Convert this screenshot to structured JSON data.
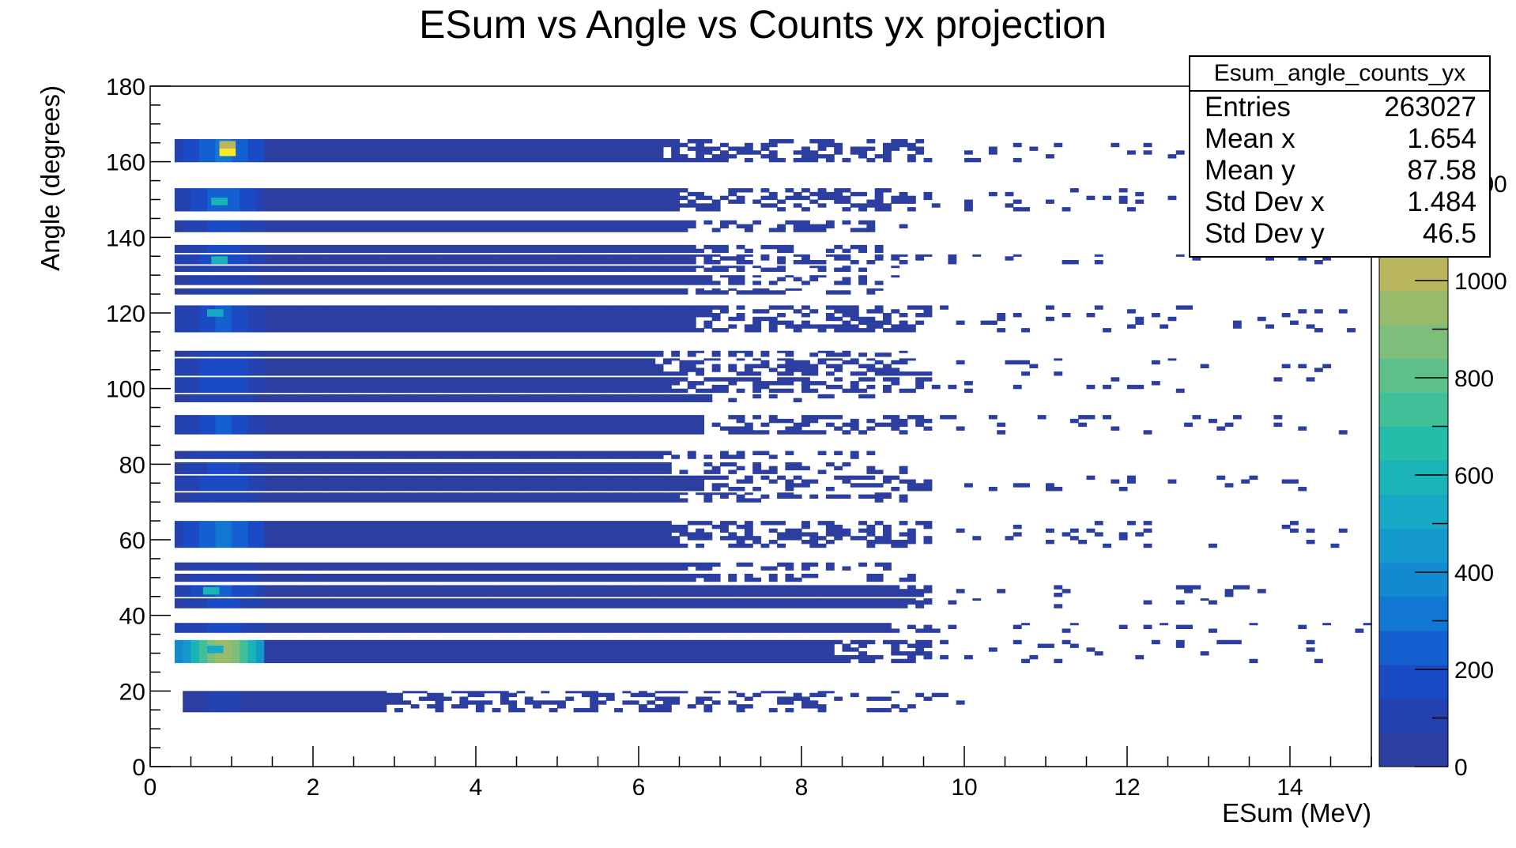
{
  "chart_data": {
    "type": "heatmap",
    "title": "ESum vs Angle vs Counts yx projection",
    "xlabel": "ESum (MeV)",
    "ylabel": "Angle (degrees)",
    "xlim": [
      0,
      15
    ],
    "ylim": [
      0,
      180
    ],
    "zlim": [
      0,
      1400
    ],
    "x_ticks": [
      "0",
      "2",
      "4",
      "6",
      "8",
      "10",
      "12",
      "14"
    ],
    "y_ticks": [
      "0",
      "20",
      "40",
      "60",
      "80",
      "100",
      "120",
      "140",
      "160",
      "180"
    ],
    "z_ticks": [
      "0",
      "200",
      "400",
      "600",
      "800",
      "1000",
      "1200"
    ],
    "palette": [
      "#2c3fa0",
      "#2342b0",
      "#1a4bc4",
      "#1460d0",
      "#1277d3",
      "#128ad0",
      "#1499cc",
      "#16a8c4",
      "#1ab4b8",
      "#25bcaa",
      "#40c099",
      "#5dc08a",
      "#7dbe7a",
      "#9bbb6c",
      "#b9b65e",
      "#d4b052",
      "#e8b542",
      "#f3c638",
      "#f8d92e",
      "#fbe829"
    ],
    "bands": [
      {
        "y0": 14.5,
        "y1": 20.0,
        "x0": 0.4,
        "dense_to": 2.9,
        "sparse_to": 10.0,
        "count": 80
      },
      {
        "y0": 27.5,
        "y1": 33.5,
        "x0": 0.3,
        "dense_to": 8.3,
        "sparse_to": 14.6,
        "count": 950
      },
      {
        "y0": 35.5,
        "y1": 38.0,
        "x0": 0.3,
        "dense_to": 9.0,
        "sparse_to": 15.0,
        "count": 180
      },
      {
        "y0": 42.0,
        "y1": 44.5,
        "x0": 0.3,
        "dense_to": 9.2,
        "sparse_to": 13.5,
        "count": 160
      },
      {
        "y0": 45.0,
        "y1": 48.0,
        "x0": 0.3,
        "dense_to": 9.0,
        "sparse_to": 14.0,
        "count": 230
      },
      {
        "y0": 49.0,
        "y1": 51.0,
        "x0": 0.3,
        "dense_to": 6.5,
        "sparse_to": 9.4,
        "count": 140
      },
      {
        "y0": 52.0,
        "y1": 54.0,
        "x0": 0.3,
        "dense_to": 6.5,
        "sparse_to": 9.4,
        "count": 140
      },
      {
        "y0": 58.0,
        "y1": 65.0,
        "x0": 0.3,
        "dense_to": 6.3,
        "sparse_to": 14.9,
        "count": 290
      },
      {
        "y0": 70.0,
        "y1": 72.5,
        "x0": 0.3,
        "dense_to": 6.4,
        "sparse_to": 9.3,
        "count": 140
      },
      {
        "y0": 73.0,
        "y1": 77.0,
        "x0": 0.3,
        "dense_to": 6.7,
        "sparse_to": 14.3,
        "count": 210
      },
      {
        "y0": 77.5,
        "y1": 80.5,
        "x0": 0.3,
        "dense_to": 6.3,
        "sparse_to": 9.3,
        "count": 160
      },
      {
        "y0": 81.5,
        "y1": 83.5,
        "x0": 0.3,
        "dense_to": 6.2,
        "sparse_to": 9.3,
        "count": 140
      },
      {
        "y0": 88.0,
        "y1": 93.0,
        "x0": 0.3,
        "dense_to": 6.7,
        "sparse_to": 14.7,
        "count": 220
      },
      {
        "y0": 96.5,
        "y1": 98.5,
        "x0": 0.3,
        "dense_to": 6.5,
        "sparse_to": 9.1,
        "count": 140
      },
      {
        "y0": 99.0,
        "y1": 103.0,
        "x0": 0.3,
        "dense_to": 6.3,
        "sparse_to": 14.5,
        "count": 200
      },
      {
        "y0": 103.5,
        "y1": 108.0,
        "x0": 0.3,
        "dense_to": 6.1,
        "sparse_to": 14.5,
        "count": 190
      },
      {
        "y0": 108.5,
        "y1": 110.0,
        "x0": 0.3,
        "dense_to": 6.2,
        "sparse_to": 9.3,
        "count": 120
      },
      {
        "y0": 115.0,
        "y1": 122.0,
        "x0": 0.3,
        "dense_to": 6.6,
        "sparse_to": 14.8,
        "count": 220
      },
      {
        "y0": 125.0,
        "y1": 126.5,
        "x0": 0.3,
        "dense_to": 6.5,
        "sparse_to": 9.0,
        "count": 120
      },
      {
        "y0": 127.5,
        "y1": 130.0,
        "x0": 0.3,
        "dense_to": 6.5,
        "sparse_to": 9.2,
        "count": 140
      },
      {
        "y0": 131.0,
        "y1": 132.5,
        "x0": 0.3,
        "dense_to": 6.6,
        "sparse_to": 9.2,
        "count": 120
      },
      {
        "y0": 133.0,
        "y1": 135.5,
        "x0": 0.3,
        "dense_to": 6.6,
        "sparse_to": 14.8,
        "count": 200
      },
      {
        "y0": 136.0,
        "y1": 138.0,
        "x0": 0.3,
        "dense_to": 6.6,
        "sparse_to": 9.2,
        "count": 170
      },
      {
        "y0": 141.5,
        "y1": 144.5,
        "x0": 0.3,
        "dense_to": 6.5,
        "sparse_to": 9.3,
        "count": 170
      },
      {
        "y0": 147.0,
        "y1": 153.0,
        "x0": 0.3,
        "dense_to": 6.4,
        "sparse_to": 14.0,
        "count": 260
      },
      {
        "y0": 160.0,
        "y1": 166.0,
        "x0": 0.3,
        "dense_to": 6.2,
        "sparse_to": 14.3,
        "count": 300
      }
    ],
    "hotspots": [
      {
        "x": 0.95,
        "y": 162.5,
        "value": 1350
      },
      {
        "x": 0.95,
        "y": 164.5,
        "value": 1000
      },
      {
        "x": 0.85,
        "y": 149.5,
        "value": 600
      },
      {
        "x": 0.85,
        "y": 134.0,
        "value": 580
      },
      {
        "x": 0.75,
        "y": 46.5,
        "value": 560
      },
      {
        "x": 0.8,
        "y": 31.0,
        "value": 520
      },
      {
        "x": 0.8,
        "y": 120.0,
        "value": 500
      }
    ]
  },
  "stats": {
    "title": "Esum_angle_counts_yx",
    "rows": [
      {
        "label": "Entries",
        "value": "263027"
      },
      {
        "label": "Mean x",
        "value": "1.654"
      },
      {
        "label": "Mean y",
        "value": "87.58"
      },
      {
        "label": "Std Dev x",
        "value": "1.484"
      },
      {
        "label": "Std Dev y",
        "value": "46.5"
      }
    ]
  }
}
